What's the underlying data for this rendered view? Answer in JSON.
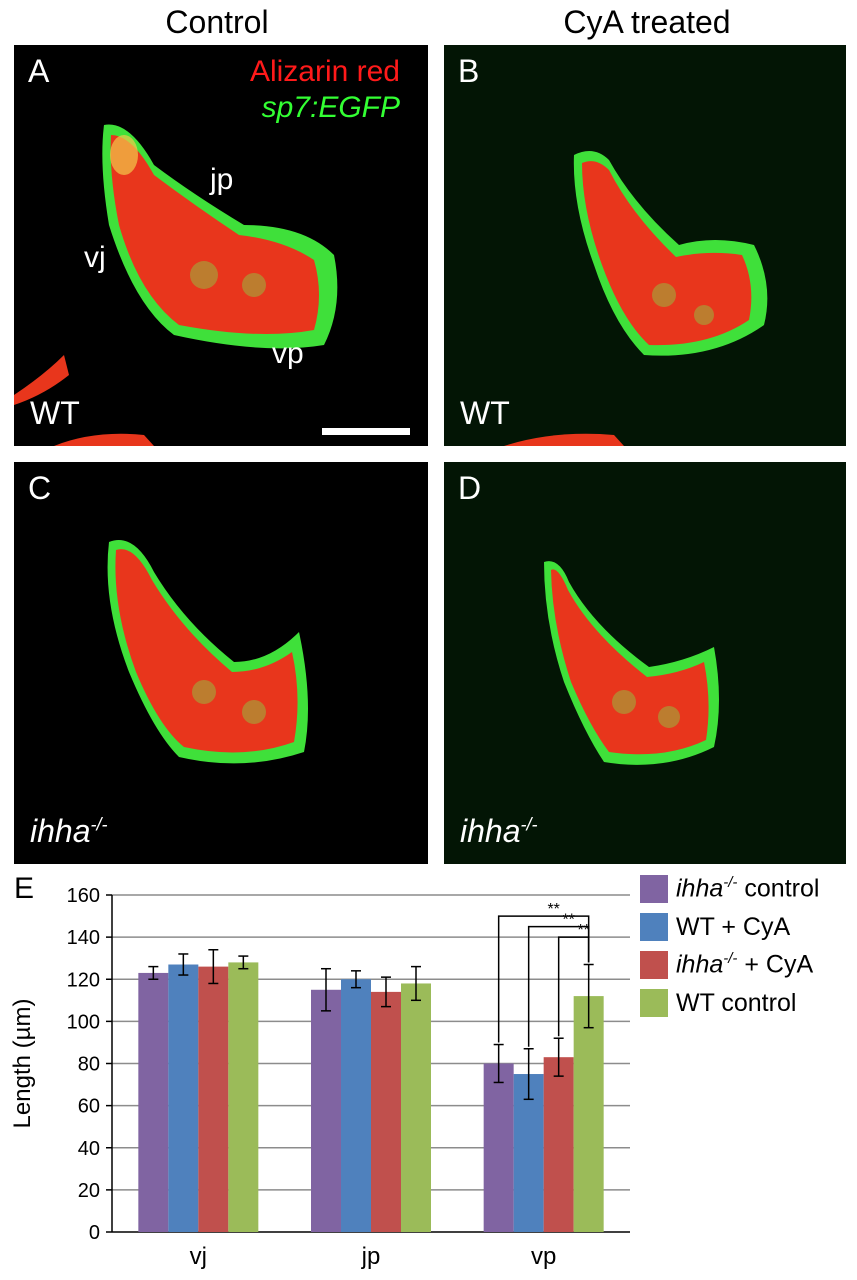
{
  "header": {
    "col_left": "Control",
    "col_right": "CyA treated"
  },
  "panels": {
    "A": {
      "letter": "A",
      "genotype": "WT",
      "stain_red": "Alizarin red",
      "stain_green": "sp7:EGFP",
      "labels": {
        "jp": "jp",
        "vj": "vj",
        "vp": "vp"
      }
    },
    "B": {
      "letter": "B",
      "genotype": "WT"
    },
    "C": {
      "letter": "C",
      "genotype_base": "ihha",
      "genotype_sup": "-/-"
    },
    "D": {
      "letter": "D",
      "genotype_base": "ihha",
      "genotype_sup": "-/-"
    }
  },
  "colors": {
    "purple": "#8064a2",
    "blue": "#4f81bd",
    "red": "#c0504d",
    "green": "#9bbb59",
    "alizarin": "#ff1a1a",
    "egfp": "#33ff33"
  },
  "chart_data": {
    "type": "bar",
    "panel_letter": "E",
    "categories": [
      "vj",
      "jp",
      "vp"
    ],
    "ylabel": "Length (µm)",
    "xlabel": "",
    "ylim": [
      0,
      160
    ],
    "yticks": [
      0,
      20,
      40,
      60,
      80,
      100,
      120,
      140,
      160
    ],
    "grid": true,
    "legend_position": "right",
    "series": [
      {
        "name": "ihha-/- control",
        "name_base": "ihha",
        "name_sup": "-/-",
        "name_rest": " control",
        "color": "#8064a2",
        "values": [
          123,
          115,
          80
        ],
        "errors": [
          3,
          10,
          9
        ]
      },
      {
        "name": "WT + CyA",
        "name_base": "",
        "name_sup": "",
        "name_rest": "WT + CyA",
        "color": "#4f81bd",
        "values": [
          127,
          120,
          75
        ],
        "errors": [
          5,
          4,
          12
        ]
      },
      {
        "name": "ihha-/- + CyA",
        "name_base": "ihha",
        "name_sup": "-/-",
        "name_rest": " + CyA",
        "color": "#c0504d",
        "values": [
          126,
          114,
          83
        ],
        "errors": [
          8,
          7,
          9
        ]
      },
      {
        "name": "WT control",
        "name_base": "",
        "name_sup": "",
        "name_rest": "WT control",
        "color": "#9bbb59",
        "values": [
          128,
          118,
          112
        ],
        "errors": [
          3,
          8,
          15
        ]
      }
    ],
    "significance": [
      {
        "from_series": 0,
        "to_series": 3,
        "category": "vp",
        "label": "**"
      },
      {
        "from_series": 1,
        "to_series": 3,
        "category": "vp",
        "label": "**"
      },
      {
        "from_series": 2,
        "to_series": 3,
        "category": "vp",
        "label": "**"
      }
    ]
  }
}
